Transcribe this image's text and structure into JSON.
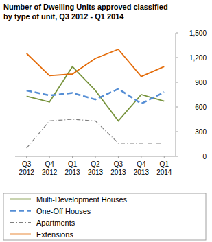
{
  "chart_data": {
    "type": "line",
    "title": "Number of Dwelling Units approved classified",
    "subtitle": "by type of unit,  Q3 2012 - Q1 2014",
    "categories": [
      "Q3 2012",
      "Q4 2012",
      "Q1 2013",
      "Q2 2013",
      "Q3 2013",
      "Q4 2013",
      "Q1 2014"
    ],
    "series": [
      {
        "name": "Multi-Development Houses",
        "color": "#77933c",
        "line_style": "solid",
        "values": [
          730,
          660,
          1090,
          800,
          430,
          750,
          670
        ]
      },
      {
        "name": "One-Off Houses",
        "color": "#558ed5",
        "line_style": "dashed",
        "values": [
          800,
          740,
          770,
          690,
          820,
          640,
          780
        ]
      },
      {
        "name": "Apartments",
        "color": "#7f7f7f",
        "line_style": "dash-dot",
        "values": [
          100,
          430,
          450,
          430,
          160,
          160,
          160
        ]
      },
      {
        "name": "Extensions",
        "color": "#e46c0a",
        "line_style": "solid",
        "values": [
          1250,
          980,
          1000,
          1190,
          1300,
          970,
          1090
        ]
      }
    ],
    "ylim": [
      0,
      1500
    ],
    "yticks": [
      0,
      300,
      600,
      900,
      {
        "value": 1200,
        "label": "1,200"
      },
      {
        "value": 1500,
        "label": "1,500"
      }
    ],
    "grid": false,
    "legend": "bottom"
  }
}
